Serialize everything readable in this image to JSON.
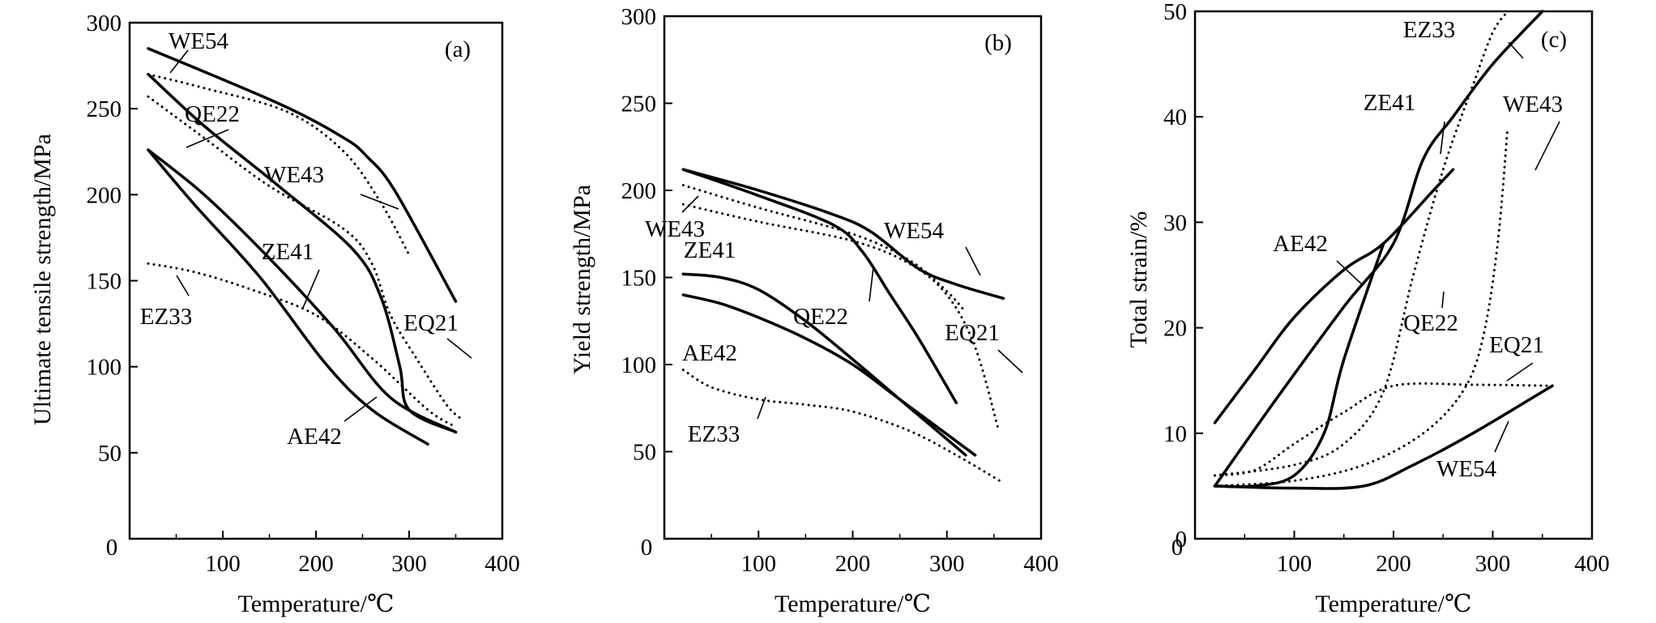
{
  "chart_data": [
    {
      "type": "line",
      "panel_label": "(a)",
      "xlabel": "Temperature/℃",
      "ylabel": "Ultimate tensile strength/MPa",
      "xlim": [
        0,
        400
      ],
      "ylim": [
        0,
        300
      ],
      "xticks": [
        0,
        100,
        200,
        300,
        400
      ],
      "yticks": [
        50,
        100,
        150,
        200,
        250,
        300
      ],
      "grid": false,
      "series": [
        {
          "name": "WE54",
          "style": "solid",
          "points": [
            [
              20,
              285
            ],
            [
              160,
              253
            ],
            [
              230,
              233
            ],
            [
              255,
              222
            ],
            [
              285,
              202
            ],
            [
              350,
              138
            ]
          ]
        },
        {
          "name": "QE22",
          "style": "solid",
          "points": [
            [
              20,
              270
            ],
            [
              80,
              240
            ],
            [
              160,
              205
            ],
            [
              240,
              168
            ],
            [
              270,
              140
            ],
            [
              290,
              100
            ],
            [
              300,
              75
            ],
            [
              350,
              62
            ]
          ]
        },
        {
          "name": "WE43",
          "style": "dotted",
          "points": [
            [
              20,
              270
            ],
            [
              80,
              262
            ],
            [
              170,
              248
            ],
            [
              230,
              225
            ],
            [
              270,
              195
            ],
            [
              300,
              165
            ]
          ]
        },
        {
          "name": "EQ21",
          "style": "dotted",
          "points": [
            [
              20,
              257
            ],
            [
              80,
              233
            ],
            [
              150,
              205
            ],
            [
              230,
              180
            ],
            [
              260,
              160
            ],
            [
              280,
              130
            ],
            [
              310,
              103
            ],
            [
              340,
              78
            ],
            [
              355,
              70
            ]
          ]
        },
        {
          "name": "ZE41",
          "style": "solid",
          "points": [
            [
              20,
              226
            ],
            [
              80,
              200
            ],
            [
              150,
              163
            ],
            [
              220,
              122
            ],
            [
              280,
              82
            ],
            [
              350,
              62
            ]
          ]
        },
        {
          "name": "AE42",
          "style": "solid",
          "points": [
            [
              20,
              226
            ],
            [
              70,
              194
            ],
            [
              140,
              152
            ],
            [
              210,
              102
            ],
            [
              260,
              75
            ],
            [
              320,
              55
            ]
          ]
        },
        {
          "name": "EZ33",
          "style": "dotted",
          "points": [
            [
              20,
              160
            ],
            [
              70,
              155
            ],
            [
              130,
              145
            ],
            [
              200,
              130
            ],
            [
              260,
              105
            ],
            [
              320,
              75
            ],
            [
              350,
              65
            ]
          ]
        }
      ]
    },
    {
      "type": "line",
      "panel_label": "(b)",
      "xlabel": "Temperature/℃",
      "ylabel": "Yield strength/MPa",
      "xlim": [
        0,
        400
      ],
      "ylim": [
        0,
        300
      ],
      "xticks": [
        0,
        100,
        200,
        300,
        400
      ],
      "yticks": [
        50,
        100,
        150,
        200,
        250,
        300
      ],
      "grid": false,
      "series": [
        {
          "name": "WE54",
          "style": "solid",
          "points": [
            [
              20,
              212
            ],
            [
              100,
              200
            ],
            [
              180,
              186
            ],
            [
              220,
              176
            ],
            [
              270,
              155
            ],
            [
              310,
              146
            ],
            [
              360,
              138
            ]
          ]
        },
        {
          "name": "QE22",
          "style": "solid",
          "points": [
            [
              20,
              212
            ],
            [
              100,
              197
            ],
            [
              180,
              180
            ],
            [
              210,
              165
            ],
            [
              240,
              140
            ],
            [
              270,
              115
            ],
            [
              310,
              78
            ]
          ]
        },
        {
          "name": "WE43",
          "style": "dotted",
          "points": [
            [
              20,
              203
            ],
            [
              100,
              190
            ],
            [
              200,
              175
            ],
            [
              260,
              160
            ],
            [
              300,
              142
            ],
            [
              320,
              130
            ]
          ]
        },
        {
          "name": "EQ21",
          "style": "dotted",
          "points": [
            [
              20,
              192
            ],
            [
              100,
              182
            ],
            [
              200,
              171
            ],
            [
              260,
              158
            ],
            [
              300,
              140
            ],
            [
              330,
              110
            ],
            [
              355,
              62
            ]
          ]
        },
        {
          "name": "ZE41",
          "style": "solid",
          "points": [
            [
              20,
              152
            ],
            [
              60,
              150
            ],
            [
              100,
              143
            ],
            [
              150,
              125
            ],
            [
              200,
              103
            ],
            [
              250,
              80
            ],
            [
              320,
              48
            ]
          ]
        },
        {
          "name": "AE42",
          "style": "solid",
          "points": [
            [
              20,
              140
            ],
            [
              60,
              135
            ],
            [
              100,
              127
            ],
            [
              150,
              115
            ],
            [
              200,
              100
            ],
            [
              250,
              80
            ],
            [
              330,
              48
            ]
          ]
        },
        {
          "name": "EZ33",
          "style": "dotted",
          "points": [
            [
              20,
              97
            ],
            [
              50,
              87
            ],
            [
              100,
              80
            ],
            [
              150,
              77
            ],
            [
              200,
              73
            ],
            [
              260,
              62
            ],
            [
              310,
              48
            ],
            [
              360,
              32
            ]
          ]
        }
      ]
    },
    {
      "type": "line",
      "panel_label": "(c)",
      "xlabel": "Temperature/℃",
      "ylabel": "Total strain/%",
      "xlim": [
        0,
        400
      ],
      "ylim": [
        0,
        50
      ],
      "xticks": [
        0,
        100,
        200,
        300,
        400
      ],
      "yticks": [
        0,
        10,
        20,
        30,
        40,
        50
      ],
      "grid": false,
      "series": [
        {
          "name": "ZE41",
          "style": "solid",
          "points": [
            [
              20,
              5
            ],
            [
              80,
              13
            ],
            [
              150,
              22
            ],
            [
              200,
              28
            ],
            [
              230,
              36
            ],
            [
              260,
              40
            ],
            [
              300,
              45
            ],
            [
              350,
              50
            ]
          ]
        },
        {
          "name": "EZ33",
          "style": "dotted",
          "points": [
            [
              20,
              6
            ],
            [
              100,
              7
            ],
            [
              150,
              9
            ],
            [
              190,
              14
            ],
            [
              220,
              25
            ],
            [
              250,
              35
            ],
            [
              280,
              43
            ],
            [
              300,
              48
            ],
            [
              315,
              50
            ]
          ]
        },
        {
          "name": "WE43",
          "style": "dotted",
          "points": [
            [
              20,
              5
            ],
            [
              100,
              5.5
            ],
            [
              170,
              7
            ],
            [
              230,
              10
            ],
            [
              270,
              14
            ],
            [
              290,
              19
            ],
            [
              305,
              28
            ],
            [
              315,
              39
            ]
          ]
        },
        {
          "name": "AE42",
          "style": "solid",
          "points": [
            [
              20,
              11
            ],
            [
              60,
              16
            ],
            [
              100,
              21
            ],
            [
              150,
              25.5
            ],
            [
              190,
              28
            ],
            [
              240,
              33
            ],
            [
              260,
              35
            ]
          ]
        },
        {
          "name": "QE22",
          "style": "solid",
          "points": [
            [
              20,
              5
            ],
            [
              60,
              5
            ],
            [
              100,
              6
            ],
            [
              130,
              10
            ],
            [
              150,
              17
            ],
            [
              190,
              28
            ]
          ]
        },
        {
          "name": "EQ21",
          "style": "dotted",
          "points": [
            [
              20,
              6
            ],
            [
              60,
              6.5
            ],
            [
              100,
              9
            ],
            [
              150,
              12
            ],
            [
              200,
              14.5
            ],
            [
              280,
              14.6
            ],
            [
              360,
              14.5
            ]
          ]
        },
        {
          "name": "WE54",
          "style": "solid",
          "points": [
            [
              20,
              5
            ],
            [
              100,
              4.8
            ],
            [
              170,
              5
            ],
            [
              220,
              7
            ],
            [
              280,
              10
            ],
            [
              360,
              14.5
            ]
          ]
        }
      ]
    }
  ]
}
